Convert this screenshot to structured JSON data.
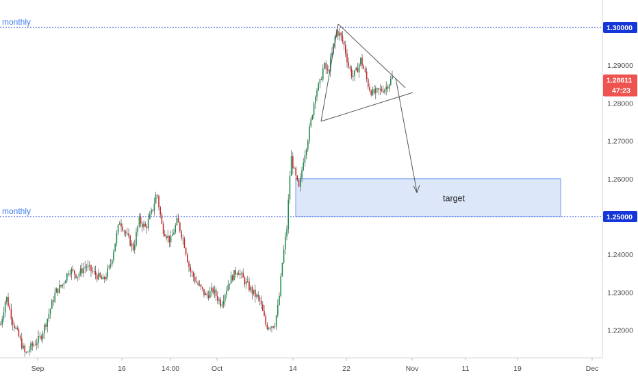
{
  "chart_data": {
    "type": "candlestick",
    "y_axis": {
      "range": [
        1.212,
        1.306
      ],
      "ticks": [
        "1.30000",
        "1.29000",
        "1.28000",
        "1.27000",
        "1.26000",
        "1.25000",
        "1.24000",
        "1.23000",
        "1.22000"
      ],
      "tick_values": [
        1.3,
        1.29,
        1.28,
        1.27,
        1.26,
        1.25,
        1.24,
        1.23,
        1.22
      ]
    },
    "x_axis": {
      "ticks": [
        "Sep",
        "16",
        "14:00",
        "Oct",
        "14",
        "22",
        "Nov",
        "11",
        "19",
        "Dec"
      ]
    },
    "levels": [
      {
        "label": "monthly",
        "price": 1.3,
        "tag": "1.30000"
      },
      {
        "label": "monthly",
        "price": 1.25,
        "tag": "1.25000"
      }
    ],
    "current_price": {
      "tag": "1.28611",
      "countdown": "47:23",
      "price": 1.28611
    },
    "target_zone": {
      "label": "target",
      "price_low": 1.25,
      "price_high": 1.26
    },
    "series_keyframes": [
      [
        0,
        1.2215
      ],
      [
        8,
        1.229
      ],
      [
        18,
        1.222
      ],
      [
        28,
        1.2175
      ],
      [
        36,
        1.2135
      ],
      [
        44,
        1.2155
      ],
      [
        58,
        1.218
      ],
      [
        68,
        1.223
      ],
      [
        80,
        1.23
      ],
      [
        90,
        1.232
      ],
      [
        100,
        1.236
      ],
      [
        112,
        1.2345
      ],
      [
        124,
        1.237
      ],
      [
        140,
        1.2345
      ],
      [
        150,
        1.233
      ],
      [
        160,
        1.237
      ],
      [
        168,
        1.244
      ],
      [
        174,
        1.249
      ],
      [
        184,
        1.245
      ],
      [
        194,
        1.2415
      ],
      [
        202,
        1.249
      ],
      [
        212,
        1.247
      ],
      [
        222,
        1.252
      ],
      [
        228,
        1.2565
      ],
      [
        236,
        1.247
      ],
      [
        248,
        1.2435
      ],
      [
        258,
        1.249
      ],
      [
        268,
        1.243
      ],
      [
        276,
        1.236
      ],
      [
        288,
        1.232
      ],
      [
        300,
        1.229
      ],
      [
        310,
        1.2305
      ],
      [
        322,
        1.227
      ],
      [
        334,
        1.233
      ],
      [
        346,
        1.236
      ],
      [
        356,
        1.233
      ],
      [
        368,
        1.23
      ],
      [
        378,
        1.228
      ],
      [
        388,
        1.221
      ],
      [
        400,
        1.2215
      ],
      [
        406,
        1.227
      ],
      [
        412,
        1.239
      ],
      [
        418,
        1.247
      ],
      [
        424,
        1.266
      ],
      [
        430,
        1.261
      ],
      [
        436,
        1.257
      ],
      [
        442,
        1.265
      ],
      [
        448,
        1.27
      ],
      [
        454,
        1.276
      ],
      [
        460,
        1.283
      ],
      [
        466,
        1.285
      ],
      [
        472,
        1.29
      ],
      [
        478,
        1.288
      ],
      [
        484,
        1.293
      ],
      [
        490,
        1.299
      ],
      [
        496,
        1.298
      ],
      [
        502,
        1.295
      ],
      [
        508,
        1.29
      ],
      [
        514,
        1.287
      ],
      [
        520,
        1.2885
      ],
      [
        526,
        1.2915
      ],
      [
        532,
        1.288
      ],
      [
        538,
        1.284
      ],
      [
        544,
        1.2825
      ],
      [
        550,
        1.283
      ],
      [
        556,
        1.2835
      ],
      [
        562,
        1.284
      ],
      [
        568,
        1.2855
      ],
      [
        572,
        1.2868
      ],
      [
        574,
        1.28611
      ]
    ],
    "grid": false,
    "legend": "none"
  }
}
